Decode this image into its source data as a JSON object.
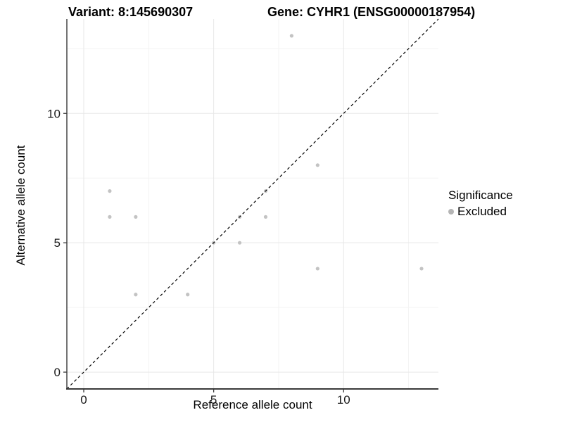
{
  "header": {
    "variant_title": "Variant: 8:145690307",
    "gene_title": "Gene: CYHR1 (ENSG00000187954)"
  },
  "chart_data": {
    "type": "scatter",
    "xlabel": "Reference allele count",
    "ylabel": "Alternative allele count",
    "xlim": [
      -0.65,
      13.65
    ],
    "ylim": [
      -0.65,
      13.65
    ],
    "x_major_ticks": [
      0,
      5,
      10
    ],
    "y_major_ticks": [
      0,
      5,
      10
    ],
    "x_tick_labels": [
      "0",
      "5",
      "10"
    ],
    "y_tick_labels": [
      "0",
      "5",
      "10"
    ],
    "x_minor_gridlines": [
      2.5,
      7.5,
      12.5
    ],
    "y_minor_gridlines": [
      2.5,
      7.5,
      12.5
    ],
    "grid": {
      "major_color": "#e7e7e7",
      "minor_color": "#f4f4f4",
      "on": true
    },
    "axis_color": "#3a3a3a",
    "tick_label_color": "#1a1a1a",
    "identity_line": {
      "style": "dashed",
      "slope": 1,
      "intercept": 0,
      "color": "#000000"
    },
    "series": [
      {
        "name": "Excluded",
        "color": "#c3c3c3",
        "points": [
          [
            1,
            7
          ],
          [
            1,
            6
          ],
          [
            2,
            6
          ],
          [
            2,
            3
          ],
          [
            4,
            3
          ],
          [
            5,
            5
          ],
          [
            6,
            5
          ],
          [
            6,
            6
          ],
          [
            7,
            6
          ],
          [
            7,
            7
          ],
          [
            8,
            13
          ],
          [
            9,
            8
          ],
          [
            9,
            4
          ],
          [
            13,
            4
          ]
        ]
      }
    ],
    "legend": {
      "title": "Significance",
      "position": "right",
      "items": [
        {
          "label": "Excluded",
          "color": "#b5b5b5"
        }
      ]
    }
  }
}
